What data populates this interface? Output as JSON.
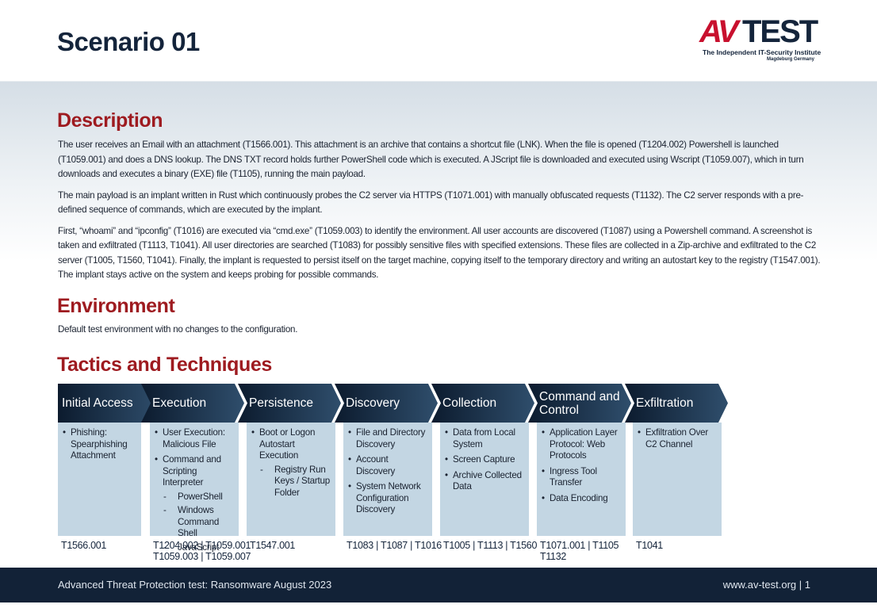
{
  "header": {
    "title": "Scenario 01",
    "logo": {
      "mark": "AV",
      "word": "TEST",
      "tagline": "The Independent IT-Security Institute",
      "location": "Magdeburg Germany"
    }
  },
  "description": {
    "heading": "Description",
    "paragraphs": [
      "The user receives an Email with an attachment (T1566.001). This attachment is an archive that contains a shortcut file (LNK). When the file is opened (T1204.002) Powershell is launched (T1059.001) and does a DNS lookup. The DNS TXT record holds further PowerShell code which is executed. A JScript file is downloaded and executed using Wscript (T1059.007), which in turn downloads and executes a binary (EXE) file (T1105), running the main payload.",
      "The main payload is an implant written in Rust which continuously probes the C2 server via HTTPS (T1071.001) with manually obfuscated requests (T1132). The C2 server responds with a pre-defined sequence of commands, which are executed by the implant.",
      "First, “whoami” and “ipconfig” (T1016) are executed via “cmd.exe” (T1059.003) to identify the environment. All user accounts are discovered (T1087) using a Powershell command. A screenshot is taken and exfiltrated (T1113, T1041). All user directories are searched (T1083) for possibly sensitive files with specified extensions. These files are collected in a Zip-archive and exfiltrated to the C2 server (T1005, T1560, T1041). Finally, the implant is requested to persist itself on the target machine, copying itself to the temporary directory and writing an autostart key to the registry (T1547.001). The implant stays active on the system and keeps probing for possible commands."
    ]
  },
  "environment": {
    "heading": "Environment",
    "text": "Default test environment with no changes to the configuration."
  },
  "tactics": {
    "heading": "Tactics and Techniques",
    "columns": [
      {
        "header": "Initial Access",
        "items": [
          {
            "text": "Phishing: Spearphishing Attachment"
          }
        ],
        "ids": [
          "T1566.001"
        ]
      },
      {
        "header": "Execution",
        "items": [
          {
            "text": "User Execution: Malicious File"
          },
          {
            "text": "Command and Scripting Interpreter",
            "subs": [
              "PowerShell",
              "Windows Command Shell",
              "JavaScript"
            ]
          }
        ],
        "ids": [
          "T1204.002 | T1059.001",
          "T1059.003 | T1059.007"
        ]
      },
      {
        "header": "Persistence",
        "items": [
          {
            "text": "Boot or Logon Autostart Execution",
            "subs": [
              "Registry Run Keys / Startup Folder"
            ]
          }
        ],
        "ids": [
          "T1547.001"
        ]
      },
      {
        "header": "Discovery",
        "items": [
          {
            "text": "File and Directory Discovery"
          },
          {
            "text": "Account Discovery"
          },
          {
            "text": "System Network Configuration Discovery"
          }
        ],
        "ids": [
          "T1083 | T1087 | T1016"
        ]
      },
      {
        "header": "Collection",
        "items": [
          {
            "text": "Data from Local System"
          },
          {
            "text": "Screen Capture"
          },
          {
            "text": "Archive Collected Data"
          }
        ],
        "ids": [
          "T1005 | T1113 | T1560"
        ]
      },
      {
        "header": "Command and Control",
        "items": [
          {
            "text": "Application Layer Protocol: Web Protocols"
          },
          {
            "text": "Ingress Tool Transfer"
          },
          {
            "text": "Data Encoding"
          }
        ],
        "ids": [
          "T1071.001 | T1105",
          "T1132"
        ]
      },
      {
        "header": "Exfiltration",
        "items": [
          {
            "text": "Exfiltration Over C2 Channel"
          }
        ],
        "ids": [
          "T1041"
        ]
      }
    ]
  },
  "footer": {
    "left": "Advanced Threat Protection test: Ransomware August 2023",
    "right": "www.av-test.org | 1"
  }
}
